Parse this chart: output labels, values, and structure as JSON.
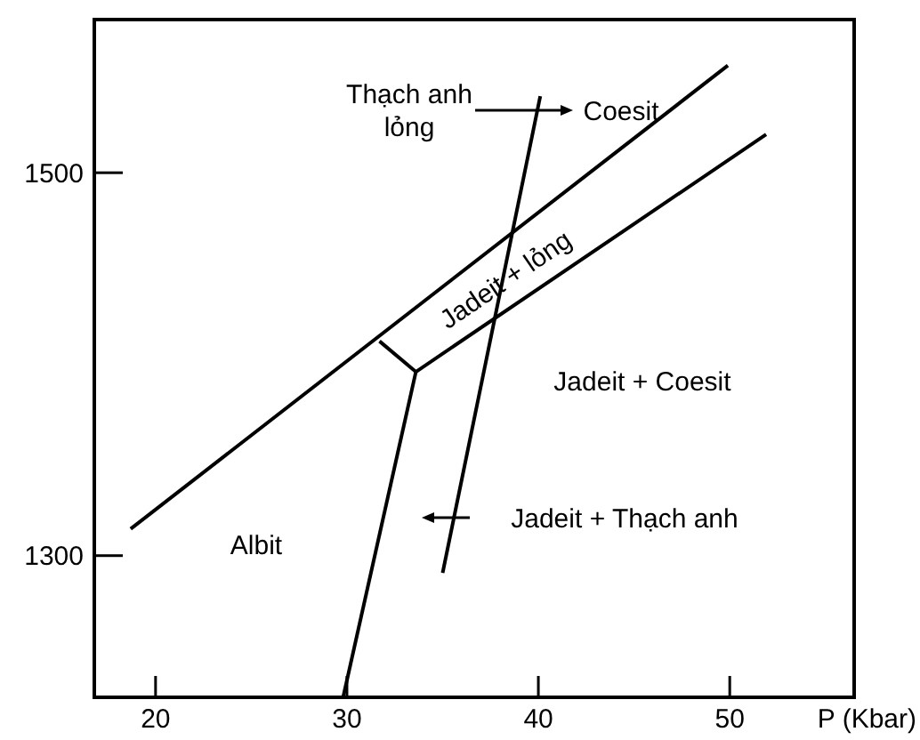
{
  "chart_data": {
    "type": "line",
    "xlabel": "P (Kbar)",
    "xlim": [
      16.8,
      56.5
    ],
    "ylim": [
      1226,
      1580
    ],
    "xticks": [
      20,
      30,
      40,
      50
    ],
    "yticks": [
      1300,
      1500
    ],
    "grid": false,
    "marker": "none",
    "line_style": "solid",
    "series": [
      {
        "color": "#000000",
        "x": [
          18.7,
          49.9
        ],
        "values": [
          1314,
          1556
        ]
      },
      {
        "color": "#000000",
        "x": [
          33.6,
          51.9
        ],
        "values": [
          1396,
          1520
        ]
      },
      {
        "color": "#000000",
        "x": [
          31.7,
          33.6
        ],
        "values": [
          1412,
          1396
        ]
      },
      {
        "color": "#000000",
        "x": [
          29.8,
          33.6
        ],
        "values": [
          1226,
          1396
        ]
      },
      {
        "color": "#000000",
        "x": [
          35.0,
          40.1
        ],
        "values": [
          1291,
          1540
        ]
      }
    ],
    "annotations": [
      "Thạch anh lỏng",
      "Coesit",
      "Jadeit + lỏng",
      "Jadeit + Coesit",
      "Jadeit + Thạch anh",
      "Albit"
    ]
  }
}
